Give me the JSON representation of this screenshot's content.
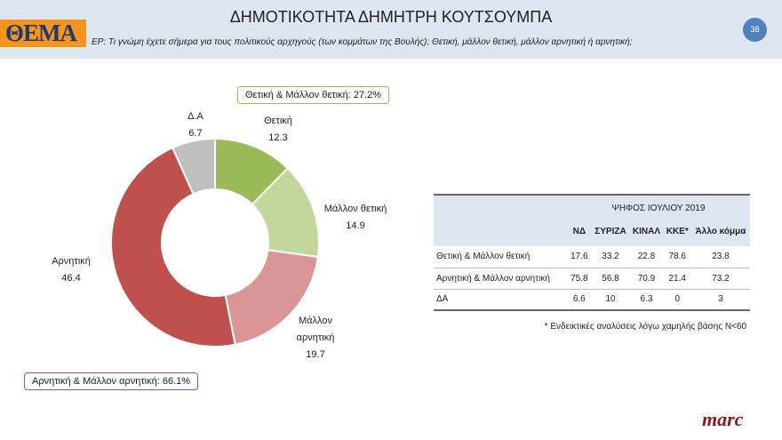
{
  "header": {
    "title": "ΔΗΜΟΤΙΚΟΤΗΤΑ ΔΗΜΗΤΡΗ ΚΟΥΤΣΟΥΜΠΑ",
    "logo": "ΘΕΜΑ",
    "question": "ΕΡ: Τι γνώμη έχετε σήμερα για τους πολιτικούς αρχηγούς (των κομμάτων της Βουλής); Θετική, μάλλον θετική, μάλλον αρνητική ή αρνητική;",
    "page_number": "38"
  },
  "summary": {
    "positive": "Θετική & Μάλλον θετική: 27.2%",
    "negative": "Αρνητική & Μάλλον αρνητική: 66.1%"
  },
  "chart_data": {
    "type": "pie",
    "donut": true,
    "categories": [
      "Θετική",
      "Μάλλον θετική",
      "Μάλλον αρνητική",
      "Αρνητική",
      "Δ.Α"
    ],
    "values": [
      12.3,
      14.9,
      19.7,
      46.4,
      6.7
    ],
    "value_labels": [
      "12.3",
      "14.9",
      "19.7",
      "46.4",
      "6.7"
    ],
    "colors": [
      "#9bbb59",
      "#c3d69b",
      "#d99694",
      "#c0504d",
      "#bfbfbf"
    ]
  },
  "table": {
    "group_header": "ΨΗΦΟΣ ΙΟΥΛΙΟΥ 2019",
    "columns": [
      "ΝΔ",
      "ΣΥΡΙΖΑ",
      "ΚΙΝΑΛ",
      "ΚΚΕ*",
      "Άλλο κόμμα"
    ],
    "rows": [
      {
        "label": "Θετική & Μάλλον θετική",
        "values": [
          "17.6",
          "33.2",
          "22.8",
          "78.6",
          "23.8"
        ]
      },
      {
        "label": "Αρνητική & Μάλλον αρνητική",
        "values": [
          "75.8",
          "56.8",
          "70.9",
          "21.4",
          "73.2"
        ]
      },
      {
        "label": "ΔΑ",
        "values": [
          "6.6",
          "10",
          "6.3",
          "0",
          "3"
        ]
      }
    ],
    "note": "* Ενδεικτικές αναλύσεις λόγω χαμηλής βάσης Ν<60"
  },
  "brand": "marc"
}
